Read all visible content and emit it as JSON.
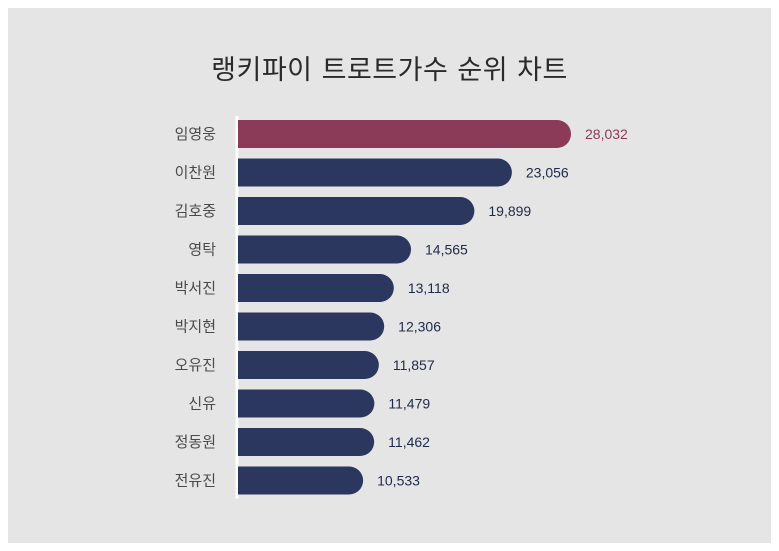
{
  "chart_data": {
    "type": "bar",
    "orientation": "horizontal",
    "title": "랭키파이 트로트가수 순위 차트",
    "categories": [
      "임영웅",
      "이찬원",
      "김호중",
      "영탁",
      "박서진",
      "박지현",
      "오유진",
      "신유",
      "정동원",
      "전유진"
    ],
    "values": [
      28032,
      23056,
      19899,
      14565,
      13118,
      12306,
      11857,
      11479,
      11462,
      10533
    ],
    "value_labels": [
      "28,032",
      "23,056",
      "19,899",
      "14,565",
      "13,118",
      "12,306",
      "11,857",
      "11,479",
      "11,462",
      "10,533"
    ],
    "xlim": [
      0,
      28032
    ],
    "grid": false,
    "colors": {
      "highlight": "#8b3a58",
      "default": "#2b375e",
      "highlight_label": "#8b3a58",
      "default_label": "#1f2a4a",
      "background": "#e5e5e5"
    }
  }
}
